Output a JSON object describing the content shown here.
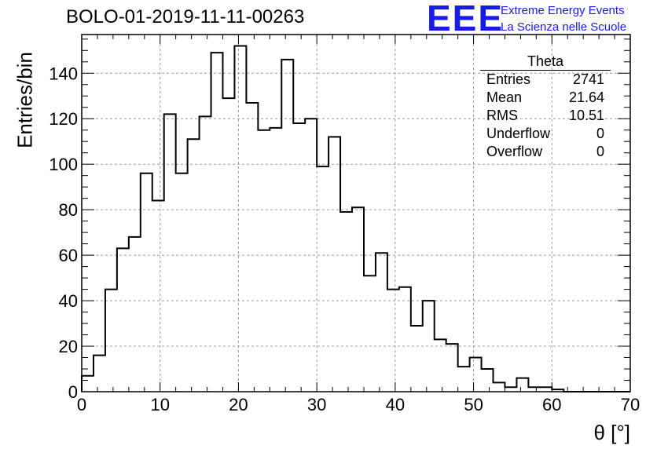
{
  "title": "BOLO-01-2019-11-11-00263",
  "logo": {
    "mark": "EEE",
    "line1": "Extreme Energy Events",
    "line2": "La Scienza nelle Scuole",
    "color": "#1a1ae6"
  },
  "stats_box": {
    "name": "Theta",
    "rows": [
      {
        "label": "Entries",
        "value": "2741"
      },
      {
        "label": "Mean",
        "value": "21.64"
      },
      {
        "label": "RMS",
        "value": "10.51"
      },
      {
        "label": "Underflow",
        "value": "0"
      },
      {
        "label": "Overflow",
        "value": "0"
      }
    ]
  },
  "chart_data": {
    "type": "histogram",
    "xlabel": "θ [°]",
    "ylabel": "Entries/bin",
    "xlim": [
      0,
      70
    ],
    "ylim": [
      0,
      157
    ],
    "bin_width": 1.5,
    "x_ticks": [
      0,
      10,
      20,
      30,
      40,
      50,
      60,
      70
    ],
    "y_ticks": [
      0,
      20,
      40,
      60,
      80,
      100,
      120,
      140
    ],
    "grid": true,
    "values": [
      7,
      16,
      45,
      63,
      68,
      96,
      84,
      122,
      96,
      111,
      121,
      149,
      129,
      152,
      127,
      115,
      116,
      146,
      118,
      120,
      99,
      112,
      79,
      81,
      51,
      61,
      45,
      46,
      29,
      40,
      23,
      21,
      11,
      15,
      10,
      4,
      2,
      6,
      2,
      2,
      1,
      0,
      0,
      0,
      0,
      0,
      0
    ]
  }
}
